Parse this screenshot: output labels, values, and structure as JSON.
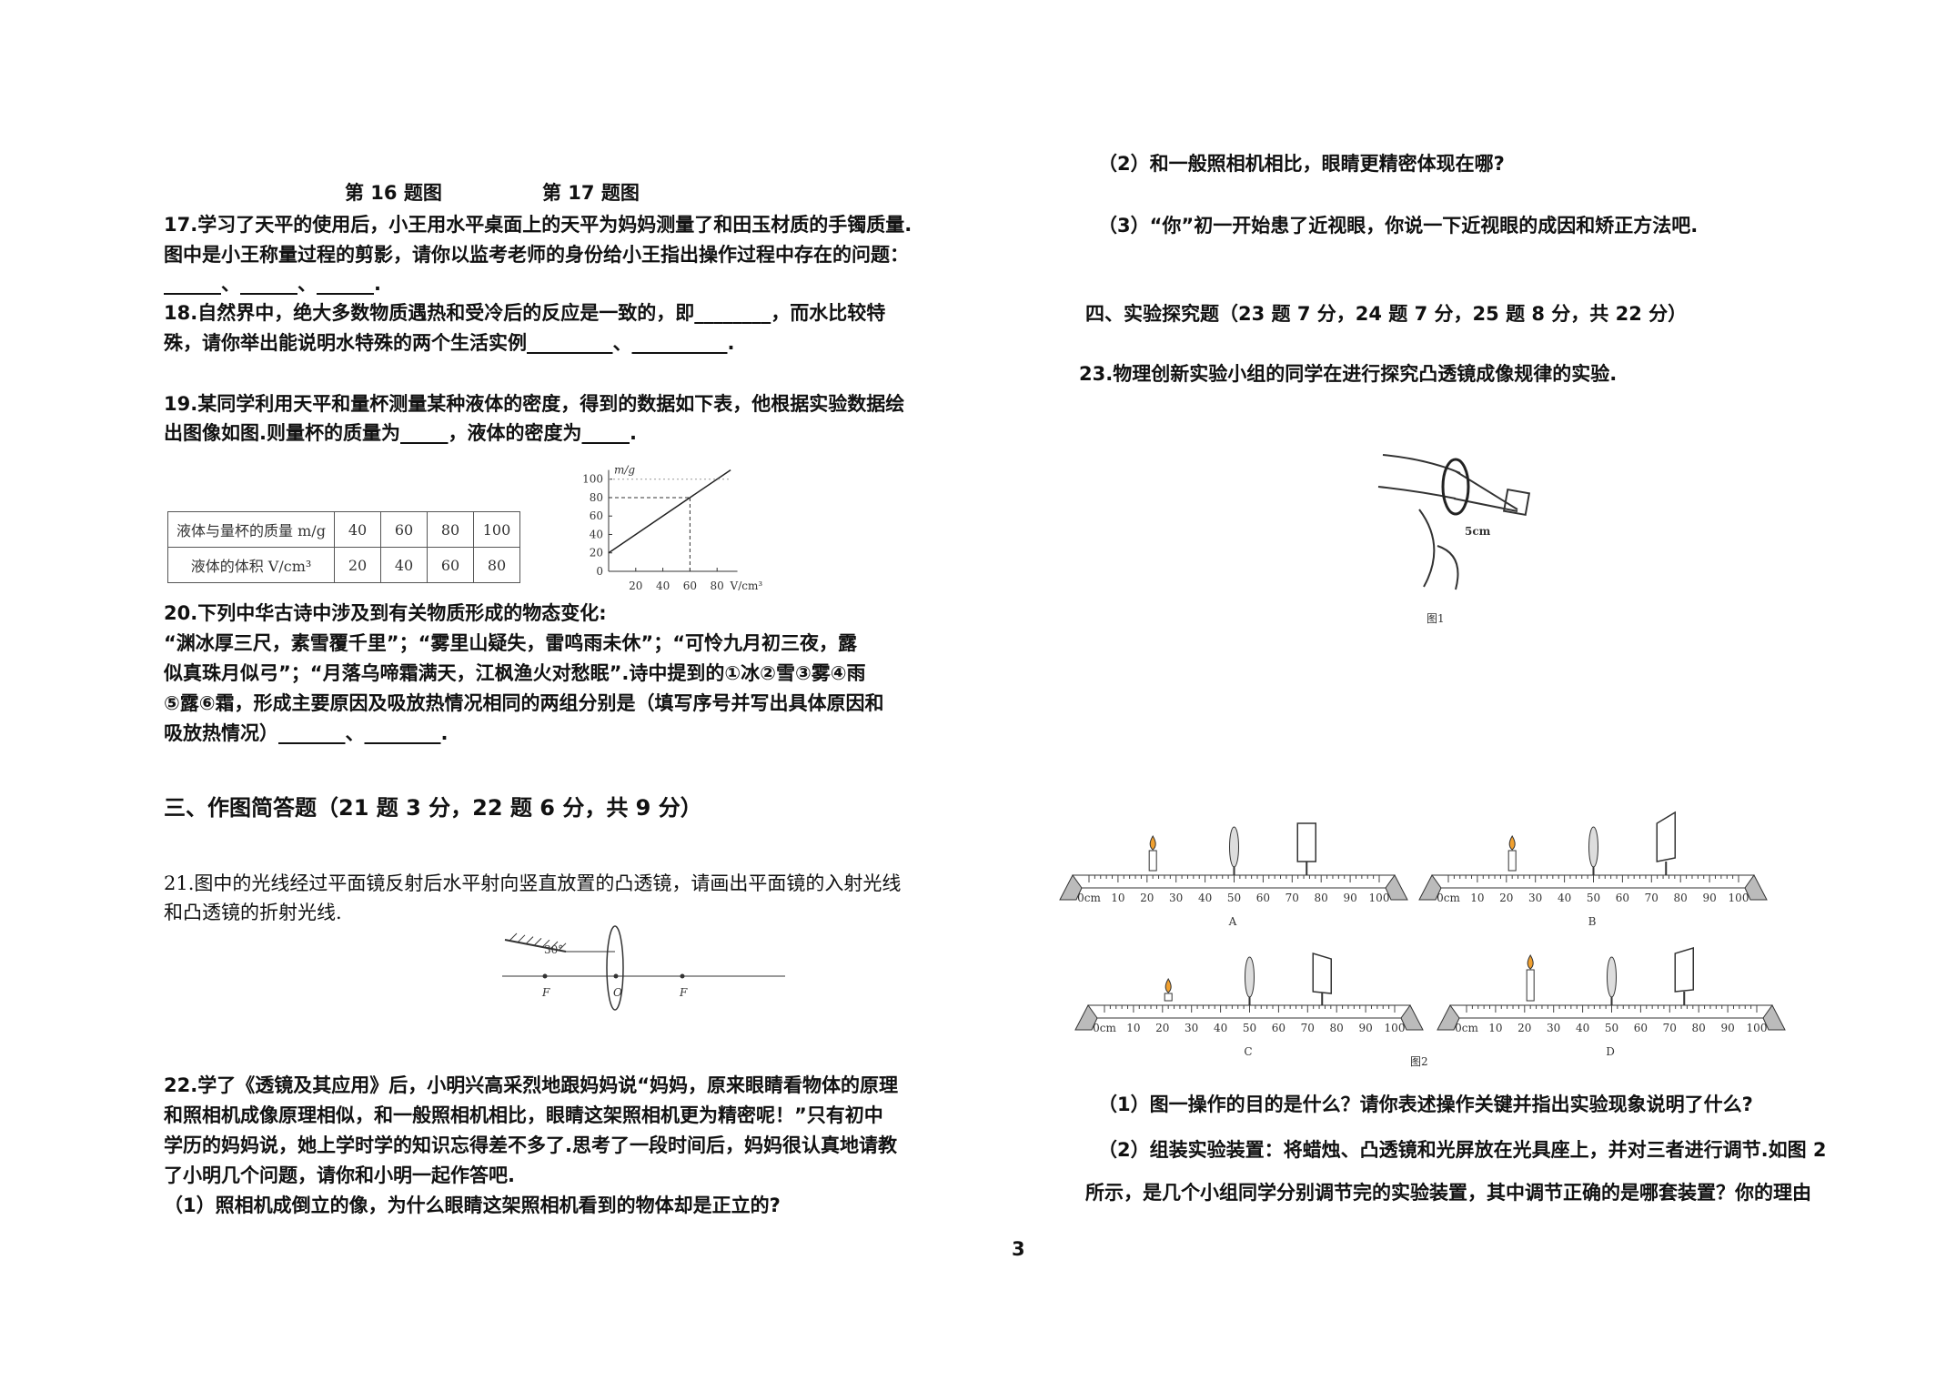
{
  "left": {
    "figure_captions": [
      "第 16 题图",
      "第 17 题图"
    ],
    "q17": [
      "17.学习了天平的使用后，小王用水平桌面上的天平为妈妈测量了和田玉材质的手镯质量.",
      "图中是小王称量过程的剪影，请你以监考老师的身份给小王指出操作过程中存在的问题：",
      "______、______、______."
    ],
    "q18": [
      "18.自然界中，绝大多数物质遇热和受冷后的反应是一致的，即________，而水比较特",
      "殊，请你举出能说明水特殊的两个生活实例_________、__________."
    ],
    "q19": [
      "19.某同学利用天平和量杯测量某种液体的密度，得到的数据如下表，他根据实验数据绘",
      "出图像如图.则量杯的质量为_____，液体的密度为_____."
    ],
    "q19_table": {
      "rows": [
        [
          "液体与量杯的质量 m/g",
          40,
          60,
          80,
          100
        ],
        [
          "液体的体积 V/cm³",
          20,
          40,
          60,
          80
        ]
      ]
    },
    "q19_graph": {
      "y_label": "m/g",
      "x_label": "V/cm³",
      "xlim": [
        0,
        95
      ],
      "ylim": [
        0,
        110
      ],
      "yticks": [
        0,
        20,
        40,
        60,
        80,
        100
      ],
      "xticks": [
        20,
        40,
        60,
        80
      ],
      "line": [
        [
          0,
          20
        ],
        [
          90,
          110
        ]
      ],
      "guide_point": [
        60,
        80
      ]
    },
    "q20": [
      "20.下列中华古诗中涉及到有关物质形成的物态变化:",
      "“渊冰厚三尺，素雪覆千里”；“雾里山疑失，雷鸣雨未休”；“可怜九月初三夜，露",
      "似真珠月似弓”；“月落乌啼霜满天，江枫渔火对愁眠”.诗中提到的①冰②雪③雾④雨",
      "⑤露⑥霜，形成主要原因及吸放热情况相同的两组分别是（填写序号并写出具体原因和",
      "吸放热情况）_______、________."
    ],
    "section3": "三、作图简答题（21 题 3 分，22 题 6 分，共 9 分）",
    "q21": [
      "21.图中的光线经过平面镜反射后水平射向竖直放置的凸透镜，请画出平面镜的入射光线",
      "和凸透镜的折射光线."
    ],
    "q21_figure": {
      "angle": "30°",
      "focus_left": "F",
      "center": "O",
      "focus_right": "F"
    },
    "q22": [
      "22.学了《透镜及其应用》后，小明兴高采烈地跟妈妈说“妈妈，原来眼睛看物体的原理",
      "和照相机成像原理相似，和一般照相机相比，眼睛这架照相机更为精密呢！”只有初中",
      "学历的妈妈说，她上学时学的知识忘得差不多了.思考了一段时间后，妈妈很认真地请教",
      "了小明几个问题，请你和小明一起作答吧.",
      "（1）照相机成倒立的像，为什么眼睛这架照相机看到的物体却是正立的?"
    ]
  },
  "right": {
    "q22_rest": [
      "（2）和一般照相机相比，眼睛更精密体现在哪?",
      "（3）“你”初一开始患了近视眼，你说一下近视眼的成因和矫正方法吧."
    ],
    "section4": "四、实验探究题（23 题 7 分，24 题 7 分，25 题 8 分，共 22 分）",
    "q23": "23.物理创新实验小组的同学在进行探究凸透镜成像规律的实验.",
    "figure1": {
      "distance": "5cm",
      "caption": "图1"
    },
    "figure2": {
      "scale": [
        "0cm",
        "10",
        "20",
        "30",
        "40",
        "50",
        "60",
        "70",
        "80",
        "90",
        "100"
      ],
      "setups": [
        "A",
        "B",
        "C",
        "D"
      ],
      "caption": "图2"
    },
    "q23_parts": [
      "（1）图一操作的目的是什么？请你表述操作关键并指出实验现象说明了什么?",
      "（2）组装实验装置：将蜡烛、凸透镜和光屏放在光具座上，并对三者进行调节.如图 2",
      "所示，是几个小组同学分别调节完的实验装置，其中调节正确的是哪套装置？你的理由"
    ]
  },
  "page_number": "3"
}
